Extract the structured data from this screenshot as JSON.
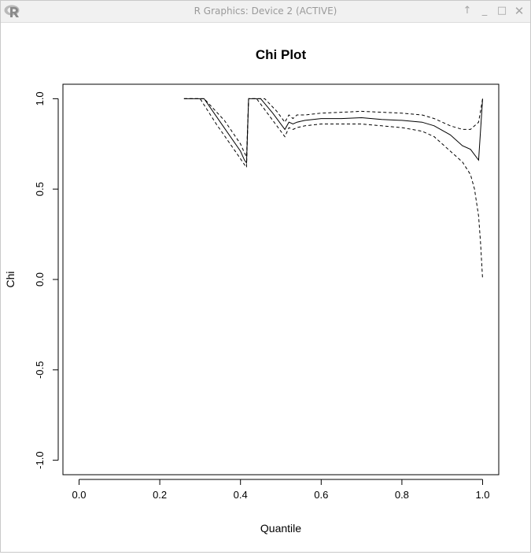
{
  "window": {
    "title": "R Graphics: Device 2 (ACTIVE)",
    "icon": "r-logo-icon",
    "controls": {
      "up": "↑",
      "minimize": "_",
      "maximize": "□",
      "close": "✕"
    }
  },
  "chart_data": {
    "type": "line",
    "title": "Chi Plot",
    "xlabel": "Quantile",
    "ylabel": "Chi",
    "xlim": [
      -0.04,
      1.04
    ],
    "ylim": [
      -1.08,
      1.08
    ],
    "x_ticks": [
      {
        "value": 0.0,
        "label": "0.0"
      },
      {
        "value": 0.2,
        "label": "0.2"
      },
      {
        "value": 0.4,
        "label": "0.4"
      },
      {
        "value": 0.6,
        "label": "0.6"
      },
      {
        "value": 0.8,
        "label": "0.8"
      },
      {
        "value": 1.0,
        "label": "1.0"
      }
    ],
    "y_ticks": [
      {
        "value": -1.0,
        "label": "-1.0"
      },
      {
        "value": -0.5,
        "label": "-0.5"
      },
      {
        "value": 0.0,
        "label": "0.0"
      },
      {
        "value": 0.5,
        "label": "0.5"
      },
      {
        "value": 1.0,
        "label": "1.0"
      }
    ],
    "grid": false,
    "series": [
      {
        "role": "estimate",
        "line_style": "solid",
        "color": "#000000",
        "points": [
          [
            0.26,
            1.0
          ],
          [
            0.31,
            1.0
          ],
          [
            0.35,
            0.87
          ],
          [
            0.4,
            0.71
          ],
          [
            0.41,
            0.66
          ],
          [
            0.415,
            0.645
          ],
          [
            0.42,
            1.0
          ],
          [
            0.45,
            1.0
          ],
          [
            0.48,
            0.92
          ],
          [
            0.51,
            0.83
          ],
          [
            0.52,
            0.87
          ],
          [
            0.53,
            0.86
          ],
          [
            0.54,
            0.87
          ],
          [
            0.56,
            0.88
          ],
          [
            0.6,
            0.89
          ],
          [
            0.65,
            0.89
          ],
          [
            0.7,
            0.895
          ],
          [
            0.75,
            0.885
          ],
          [
            0.8,
            0.88
          ],
          [
            0.85,
            0.87
          ],
          [
            0.88,
            0.85
          ],
          [
            0.92,
            0.8
          ],
          [
            0.95,
            0.74
          ],
          [
            0.97,
            0.72
          ],
          [
            0.99,
            0.66
          ],
          [
            1.0,
            1.0
          ]
        ]
      },
      {
        "role": "upper bound",
        "line_style": "dashed",
        "color": "#000000",
        "points": [
          [
            0.26,
            1.0
          ],
          [
            0.31,
            1.0
          ],
          [
            0.36,
            0.88
          ],
          [
            0.4,
            0.75
          ],
          [
            0.41,
            0.7
          ],
          [
            0.415,
            0.68
          ],
          [
            0.42,
            1.0
          ],
          [
            0.46,
            1.0
          ],
          [
            0.49,
            0.93
          ],
          [
            0.51,
            0.87
          ],
          [
            0.52,
            0.91
          ],
          [
            0.53,
            0.89
          ],
          [
            0.54,
            0.91
          ],
          [
            0.56,
            0.91
          ],
          [
            0.6,
            0.92
          ],
          [
            0.65,
            0.925
          ],
          [
            0.7,
            0.93
          ],
          [
            0.75,
            0.925
          ],
          [
            0.8,
            0.92
          ],
          [
            0.85,
            0.91
          ],
          [
            0.88,
            0.89
          ],
          [
            0.92,
            0.85
          ],
          [
            0.95,
            0.83
          ],
          [
            0.97,
            0.83
          ],
          [
            0.99,
            0.87
          ],
          [
            1.0,
            1.0
          ]
        ]
      },
      {
        "role": "lower bound",
        "line_style": "dashed",
        "color": "#000000",
        "points": [
          [
            0.26,
            1.0
          ],
          [
            0.3,
            1.0
          ],
          [
            0.34,
            0.86
          ],
          [
            0.39,
            0.7
          ],
          [
            0.41,
            0.635
          ],
          [
            0.415,
            0.62
          ],
          [
            0.42,
            1.0
          ],
          [
            0.44,
            1.0
          ],
          [
            0.47,
            0.91
          ],
          [
            0.51,
            0.79
          ],
          [
            0.52,
            0.84
          ],
          [
            0.53,
            0.83
          ],
          [
            0.54,
            0.84
          ],
          [
            0.56,
            0.85
          ],
          [
            0.6,
            0.86
          ],
          [
            0.65,
            0.86
          ],
          [
            0.7,
            0.86
          ],
          [
            0.75,
            0.85
          ],
          [
            0.8,
            0.84
          ],
          [
            0.85,
            0.82
          ],
          [
            0.88,
            0.79
          ],
          [
            0.92,
            0.71
          ],
          [
            0.95,
            0.65
          ],
          [
            0.97,
            0.58
          ],
          [
            0.98,
            0.5
          ],
          [
            0.99,
            0.35
          ],
          [
            0.995,
            0.2
          ],
          [
            1.0,
            0.0
          ]
        ]
      }
    ]
  }
}
